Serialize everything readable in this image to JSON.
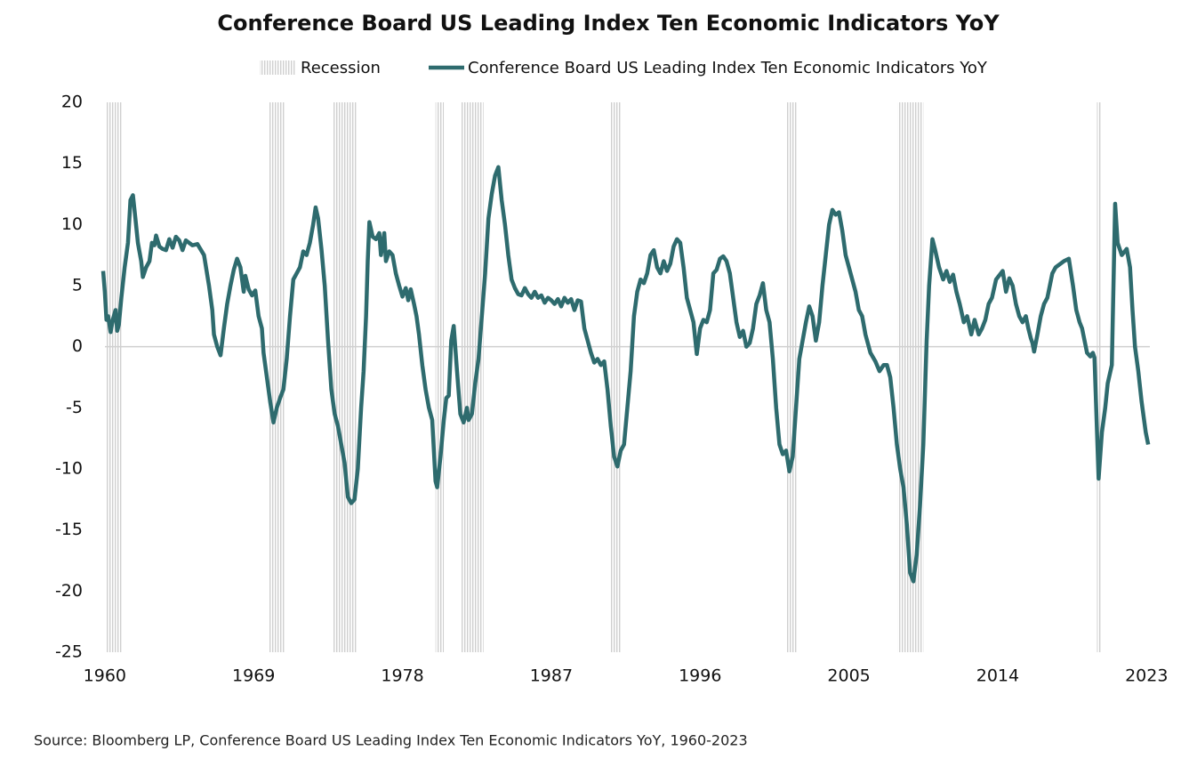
{
  "chart_data": {
    "type": "line",
    "title": "Conference Board US Leading Index Ten Economic Indicators YoY",
    "source": "Source: Bloomberg LP, Conference Board US Leading Index Ten Economic Indicators YoY, 1960-2023",
    "xlim": [
      1959.9,
      2023.2
    ],
    "xticks": [
      1960,
      1969,
      1978,
      1987,
      1996,
      2005,
      2014,
      2023
    ],
    "ylim": [
      -25,
      20
    ],
    "yticks": [
      20,
      15,
      10,
      5,
      0,
      -5,
      -10,
      -15,
      -20,
      -25
    ],
    "zero_line": true,
    "legend": "top",
    "recessions": {
      "name": "Recession",
      "color": "#cfcfcf",
      "spans": [
        [
          1960.1,
          1961.0
        ],
        [
          1969.95,
          1970.9
        ],
        [
          1973.8,
          1975.2
        ],
        [
          1980.0,
          1980.5
        ],
        [
          1981.5,
          1982.9
        ],
        [
          1990.55,
          1991.2
        ],
        [
          2001.2,
          2001.85
        ],
        [
          2007.95,
          2009.5
        ],
        [
          2020.0,
          2020.25
        ]
      ]
    },
    "x": [
      1959.9,
      1960.0,
      1960.1,
      1960.2,
      1960.35,
      1960.5,
      1960.65,
      1960.75,
      1960.85,
      1961.0,
      1961.2,
      1961.4,
      1961.55,
      1961.7,
      1961.85,
      1962.0,
      1962.2,
      1962.3,
      1962.5,
      1962.7,
      1962.85,
      1963.0,
      1963.1,
      1963.3,
      1963.5,
      1963.7,
      1963.9,
      1964.1,
      1964.3,
      1964.5,
      1964.7,
      1964.9,
      1965.3,
      1965.6,
      1966.0,
      1966.3,
      1966.5,
      1966.6,
      1966.8,
      1967.0,
      1967.2,
      1967.4,
      1967.6,
      1967.8,
      1968.0,
      1968.2,
      1968.4,
      1968.5,
      1968.7,
      1968.9,
      1969.1,
      1969.3,
      1969.5,
      1969.6,
      1969.8,
      1970.0,
      1970.2,
      1970.4,
      1970.6,
      1970.8,
      1971.0,
      1971.2,
      1971.4,
      1971.6,
      1971.8,
      1972.0,
      1972.2,
      1972.4,
      1972.6,
      1972.75,
      1972.9,
      1973.1,
      1973.3,
      1973.5,
      1973.7,
      1973.9,
      1974.1,
      1974.3,
      1974.5,
      1974.7,
      1974.9,
      1975.1,
      1975.3,
      1975.5,
      1975.65,
      1975.8,
      1975.9,
      1976.0,
      1976.2,
      1976.4,
      1976.6,
      1976.7,
      1976.9,
      1977.0,
      1977.2,
      1977.4,
      1977.6,
      1977.8,
      1978.0,
      1978.2,
      1978.35,
      1978.5,
      1978.7,
      1978.85,
      1979.0,
      1979.2,
      1979.4,
      1979.6,
      1979.8,
      1980.0,
      1980.1,
      1980.3,
      1980.5,
      1980.65,
      1980.8,
      1980.95,
      1981.1,
      1981.3,
      1981.5,
      1981.7,
      1981.9,
      1982.0,
      1982.2,
      1982.4,
      1982.6,
      1982.8,
      1983.0,
      1983.2,
      1983.4,
      1983.6,
      1983.8,
      1984.0,
      1984.2,
      1984.4,
      1984.6,
      1984.8,
      1985.0,
      1985.2,
      1985.4,
      1985.6,
      1985.8,
      1986.0,
      1986.2,
      1986.4,
      1986.6,
      1986.8,
      1987.0,
      1987.2,
      1987.4,
      1987.6,
      1987.8,
      1988.0,
      1988.2,
      1988.4,
      1988.6,
      1988.8,
      1989.0,
      1989.2,
      1989.4,
      1989.6,
      1989.8,
      1990.0,
      1990.2,
      1990.4,
      1990.6,
      1990.8,
      1991.0,
      1991.2,
      1991.4,
      1991.6,
      1991.8,
      1992.0,
      1992.2,
      1992.4,
      1992.6,
      1992.8,
      1993.0,
      1993.2,
      1993.4,
      1993.6,
      1993.8,
      1994.0,
      1994.2,
      1994.4,
      1994.6,
      1994.8,
      1995.0,
      1995.2,
      1995.4,
      1995.6,
      1995.8,
      1996.0,
      1996.2,
      1996.4,
      1996.6,
      1996.8,
      1997.0,
      1997.2,
      1997.4,
      1997.6,
      1997.8,
      1998.0,
      1998.2,
      1998.4,
      1998.6,
      1998.8,
      1999.0,
      1999.2,
      1999.4,
      1999.6,
      1999.8,
      2000.0,
      2000.2,
      2000.4,
      2000.6,
      2000.8,
      2001.0,
      2001.2,
      2001.4,
      2001.6,
      2001.8,
      2002.0,
      2002.2,
      2002.4,
      2002.6,
      2002.8,
      2003.0,
      2003.2,
      2003.4,
      2003.6,
      2003.8,
      2004.0,
      2004.2,
      2004.4,
      2004.6,
      2004.8,
      2005.0,
      2005.2,
      2005.4,
      2005.6,
      2005.8,
      2006.0,
      2006.3,
      2006.6,
      2006.85,
      2007.1,
      2007.3,
      2007.5,
      2007.7,
      2007.9,
      2008.1,
      2008.3,
      2008.5,
      2008.7,
      2008.9,
      2009.1,
      2009.3,
      2009.5,
      2009.7,
      2009.85,
      2010.05,
      2010.2,
      2010.45,
      2010.7,
      2010.9,
      2011.1,
      2011.3,
      2011.5,
      2011.7,
      2011.95,
      2012.15,
      2012.4,
      2012.6,
      2012.85,
      2013.05,
      2013.25,
      2013.45,
      2013.65,
      2013.9,
      2014.3,
      2014.5,
      2014.7,
      2014.9,
      2015.1,
      2015.3,
      2015.5,
      2015.7,
      2015.85,
      2016.0,
      2016.1,
      2016.2,
      2016.4,
      2016.6,
      2016.8,
      2017.0,
      2017.3,
      2017.5,
      2017.8,
      2018.0,
      2018.3,
      2018.55,
      2018.75,
      2018.95,
      2019.1,
      2019.4,
      2019.6,
      2019.75,
      2019.85,
      2020.1,
      2020.3,
      2020.5,
      2020.65,
      2020.9,
      2021.1,
      2021.25,
      2021.5,
      2021.8,
      2022.0,
      2022.15,
      2022.3,
      2022.5,
      2022.7,
      2022.85,
      2022.95,
      2023.1
    ],
    "series": [
      {
        "name": "Conference Board US Leading Index Ten Economic Indicators YoY",
        "color": "#2e6b6e",
        "values": [
          6.2,
          4.5,
          2.2,
          2.5,
          1.2,
          2.3,
          3.0,
          1.3,
          1.8,
          4.0,
          6.5,
          8.5,
          12.0,
          12.4,
          10.5,
          8.5,
          7.0,
          5.7,
          6.5,
          7.0,
          8.5,
          8.3,
          9.1,
          8.2,
          8.0,
          7.9,
          8.8,
          8.1,
          9.0,
          8.7,
          7.9,
          8.7,
          8.3,
          8.4,
          7.5,
          5.0,
          3.0,
          1.0,
          0.0,
          -0.7,
          1.5,
          3.5,
          5.0,
          6.3,
          7.2,
          6.5,
          4.5,
          5.8,
          4.7,
          4.2,
          4.6,
          2.5,
          1.5,
          -0.5,
          -2.5,
          -4.5,
          -6.2,
          -5.0,
          -4.2,
          -3.5,
          -1.0,
          2.5,
          5.5,
          6.0,
          6.5,
          7.8,
          7.5,
          8.5,
          10.0,
          11.4,
          10.5,
          8.0,
          5.0,
          0.5,
          -3.5,
          -5.5,
          -6.5,
          -8.0,
          -9.5,
          -12.3,
          -12.8,
          -12.5,
          -10.0,
          -5.0,
          -2.0,
          2.5,
          7.0,
          10.2,
          9.0,
          8.8,
          9.3,
          7.5,
          9.3,
          7.0,
          7.8,
          7.5,
          6.0,
          5.0,
          4.1,
          4.8,
          3.8,
          4.7,
          3.5,
          2.5,
          1.0,
          -1.5,
          -3.5,
          -5.0,
          -6.0,
          -11.0,
          -11.5,
          -9.0,
          -6.0,
          -4.2,
          -4.0,
          0.5,
          1.7,
          -2.0,
          -5.5,
          -6.2,
          -5.0,
          -6.0,
          -5.5,
          -3.0,
          -1.0,
          2.5,
          6.0,
          10.5,
          12.5,
          14.0,
          14.7,
          12.0,
          10.0,
          7.5,
          5.5,
          4.8,
          4.3,
          4.2,
          4.8,
          4.3,
          4.0,
          4.5,
          4.0,
          4.2,
          3.6,
          4.0,
          3.8,
          3.5,
          3.9,
          3.3,
          4.0,
          3.6,
          3.9,
          3.0,
          3.8,
          3.7,
          1.5,
          0.5,
          -0.5,
          -1.3,
          -1.0,
          -1.5,
          -1.2,
          -3.5,
          -6.5,
          -9.0,
          -9.8,
          -8.5,
          -8.0,
          -5.0,
          -2.0,
          2.5,
          4.5,
          5.5,
          5.2,
          6.0,
          7.5,
          7.9,
          6.5,
          6.0,
          7.0,
          6.2,
          6.8,
          8.2,
          8.8,
          8.5,
          6.5,
          4.0,
          3.0,
          2.0,
          -0.6,
          1.5,
          2.2,
          2.0,
          3.0,
          6.0,
          6.3,
          7.2,
          7.4,
          7.0,
          6.0,
          4.0,
          2.0,
          0.8,
          1.3,
          0.0,
          0.3,
          1.5,
          3.5,
          4.2,
          5.2,
          3.0,
          2.0,
          -1.0,
          -5.0,
          -8.0,
          -8.8,
          -8.5,
          -10.2,
          -9.0,
          -5.0,
          -1.0,
          0.5,
          2.0,
          3.3,
          2.5,
          0.5,
          2.0,
          5.0,
          7.5,
          10.0,
          11.2,
          10.8,
          11.0,
          9.5,
          7.5,
          6.5,
          5.5,
          4.5,
          3.0,
          2.5,
          1.0,
          -0.5,
          -1.2,
          -2.0,
          -1.5,
          -1.5,
          -2.5,
          -5.0,
          -8.0,
          -10.0,
          -11.5,
          -14.5,
          -18.5,
          -19.2,
          -17.0,
          -13.0,
          -8.0,
          0.5,
          5.0,
          8.8,
          8.0,
          6.5,
          5.5,
          6.2,
          5.3,
          5.9,
          4.5,
          3.5,
          2.0,
          2.5,
          1.0,
          2.2,
          1.0,
          1.5,
          2.2,
          3.5,
          4.0,
          5.5,
          6.2,
          4.5,
          5.6,
          5.0,
          3.5,
          2.5,
          2.0,
          2.5,
          1.5,
          0.7,
          0.3,
          -0.4,
          1.0,
          2.5,
          3.5,
          4.0,
          6.0,
          6.5,
          6.8,
          7.0,
          7.2,
          5.0,
          3.0,
          2.0,
          1.5,
          -0.5,
          -0.8,
          -0.5,
          -0.9,
          -10.8,
          -7.0,
          -5.0,
          -3.0,
          -1.5,
          11.7,
          8.5,
          7.5,
          8.0,
          6.5,
          3.0,
          0.0,
          -2.0,
          -4.5,
          -6.0,
          -7.0,
          -8.0
        ]
      }
    ]
  }
}
